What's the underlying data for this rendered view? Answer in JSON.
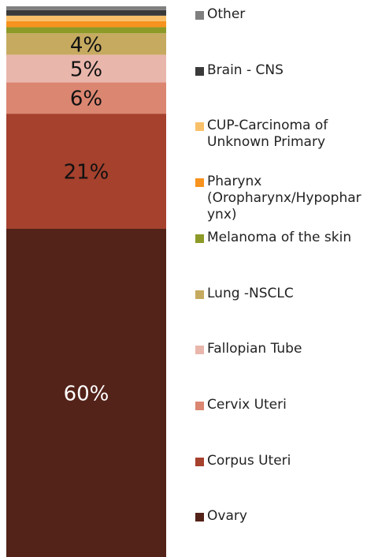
{
  "chart_data": {
    "type": "bar",
    "stacked": true,
    "ylim": [
      0,
      100
    ],
    "series": [
      {
        "name": "Ovary",
        "color": "#532218",
        "values": [
          59.6
        ],
        "value_labels": [
          "60%"
        ]
      },
      {
        "name": "Corpus Uteri",
        "color": "#a5412d",
        "values": [
          20.9
        ],
        "value_labels": [
          "21%"
        ]
      },
      {
        "name": "Cervix Uteri",
        "color": "#db8671",
        "values": [
          5.7
        ],
        "value_labels": [
          "6%"
        ]
      },
      {
        "name": "Fallopian Tube",
        "color": "#e9b6ac",
        "values": [
          5.0
        ],
        "value_labels": [
          "5%"
        ]
      },
      {
        "name": "Lung -NSCLC",
        "color": "#c6aa60",
        "values": [
          3.9
        ],
        "value_labels": [
          "4%"
        ]
      },
      {
        "name": "Melanoma of the skin",
        "color": "#8d9a28",
        "values": [
          1.1
        ]
      },
      {
        "name": "Pharynx (Oropharynx/Hypopharynx)",
        "color": "#f7931e",
        "values": [
          1.1
        ]
      },
      {
        "name": "CUP-Carcinoma of Unknown Primary",
        "color": "#f9c06a",
        "values": [
          1.0
        ]
      },
      {
        "name": "Brain - CNS",
        "color": "#3a3a3a",
        "values": [
          1.0
        ]
      },
      {
        "name": "Other",
        "color": "#7f7f7f",
        "values": [
          0.7
        ]
      }
    ]
  }
}
